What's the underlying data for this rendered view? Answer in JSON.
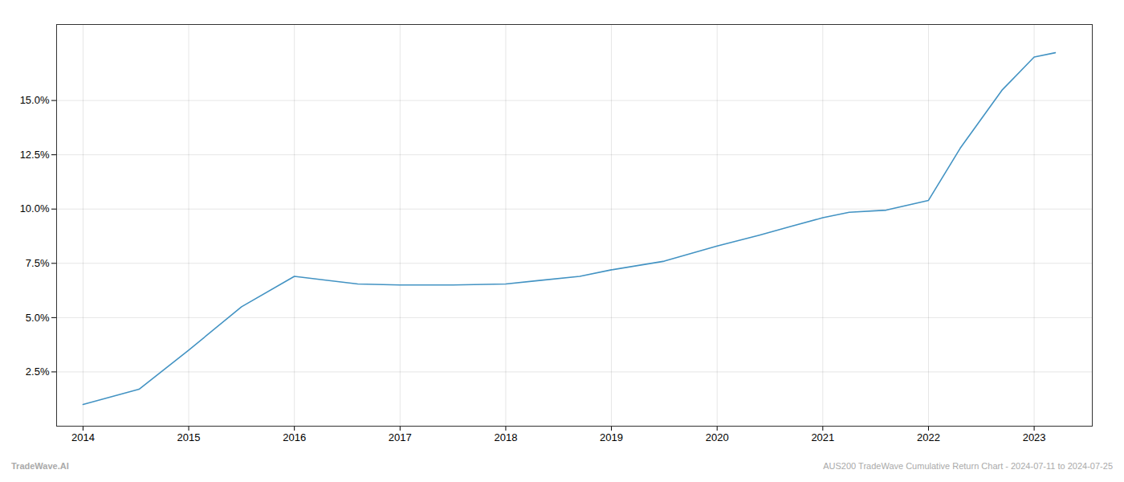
{
  "chart_data": {
    "type": "line",
    "x": [
      2014.0,
      2014.53,
      2015.0,
      2015.5,
      2016.0,
      2016.25,
      2016.6,
      2017.0,
      2017.5,
      2018.0,
      2018.3,
      2018.7,
      2019.0,
      2019.5,
      2020.0,
      2020.4,
      2020.7,
      2021.0,
      2021.25,
      2021.6,
      2022.0,
      2022.3,
      2022.7,
      2023.0,
      2023.2
    ],
    "values": [
      1.0,
      1.7,
      3.5,
      5.5,
      6.9,
      6.75,
      6.55,
      6.5,
      6.5,
      6.55,
      6.7,
      6.9,
      7.2,
      7.6,
      8.3,
      8.8,
      9.2,
      9.6,
      9.85,
      9.95,
      10.4,
      12.8,
      15.5,
      17.0,
      17.2
    ],
    "color": "#4393c3",
    "xlim": [
      2013.75,
      2023.55
    ],
    "ylim": [
      0.0,
      18.5
    ],
    "xticks": [
      2014,
      2015,
      2016,
      2017,
      2018,
      2019,
      2020,
      2021,
      2022,
      2023
    ],
    "yticks": [
      {
        "value": 2.5,
        "label": "2.5%"
      },
      {
        "value": 5.0,
        "label": "5.0%"
      },
      {
        "value": 7.5,
        "label": "7.5%"
      },
      {
        "value": 10.0,
        "label": "10.0%"
      },
      {
        "value": 12.5,
        "label": "12.5%"
      },
      {
        "value": 15.0,
        "label": "15.0%"
      }
    ],
    "grid": true,
    "annotations": [
      "TradeWave.AI",
      "AUS200 TradeWave Cumulative Return Chart - 2024-07-11 to 2024-07-25"
    ]
  }
}
